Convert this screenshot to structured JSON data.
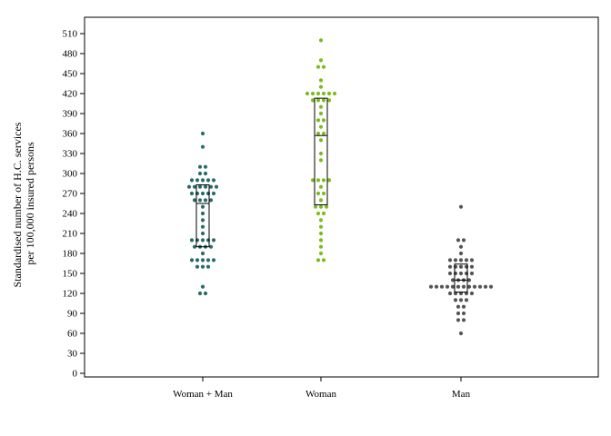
{
  "chart_data": {
    "type": "scatter",
    "title": "",
    "xlabel": "",
    "ylabel_lines": [
      "Standardised number of H.C. services",
      "per 100,000 insured persons"
    ],
    "ylim": [
      0,
      525
    ],
    "yticks": [
      0,
      30,
      60,
      90,
      120,
      150,
      180,
      210,
      240,
      270,
      300,
      330,
      360,
      390,
      420,
      450,
      480,
      510
    ],
    "ytick_labels": [
      "0",
      "30",
      "60",
      "90",
      "120",
      "150",
      "180",
      "210",
      "240",
      "270",
      "300",
      "330",
      "360",
      "390",
      "420",
      "450",
      "480",
      "510"
    ],
    "categories": [
      "Woman + Man",
      "Woman",
      "Man"
    ],
    "grid": false,
    "legend": "none",
    "series": [
      {
        "color": "#2a6b6b",
        "values": [
          360,
          340,
          310,
          310,
          300,
          300,
          290,
          290,
          290,
          290,
          290,
          280,
          280,
          280,
          280,
          280,
          280,
          270,
          270,
          270,
          270,
          270,
          260,
          260,
          260,
          260,
          250,
          240,
          230,
          220,
          210,
          200,
          200,
          200,
          200,
          200,
          190,
          190,
          190,
          190,
          180,
          170,
          170,
          170,
          170,
          170,
          160,
          160,
          160,
          130,
          120,
          120
        ],
        "box": {
          "q1": 190,
          "median": 255,
          "q3": 283
        }
      },
      {
        "color": "#7dbb1e",
        "values": [
          500,
          470,
          460,
          460,
          440,
          430,
          420,
          420,
          420,
          420,
          420,
          420,
          410,
          410,
          410,
          410,
          400,
          390,
          380,
          380,
          370,
          360,
          360,
          350,
          330,
          320,
          290,
          290,
          290,
          290,
          280,
          270,
          270,
          260,
          250,
          250,
          250,
          240,
          240,
          230,
          220,
          210,
          200,
          190,
          180,
          170,
          170
        ],
        "box": {
          "q1": 253,
          "median": 357,
          "q3": 413
        }
      },
      {
        "color": "#555555",
        "values": [
          250,
          200,
          200,
          190,
          180,
          170,
          170,
          170,
          170,
          170,
          160,
          160,
          160,
          160,
          160,
          150,
          150,
          150,
          150,
          150,
          140,
          140,
          140,
          140,
          130,
          130,
          130,
          130,
          130,
          130,
          130,
          130,
          130,
          130,
          130,
          130,
          120,
          120,
          120,
          120,
          120,
          110,
          110,
          110,
          100,
          100,
          90,
          90,
          80,
          80,
          60
        ],
        "box": {
          "q1": 122,
          "median": 140,
          "q3": 164
        }
      }
    ]
  }
}
